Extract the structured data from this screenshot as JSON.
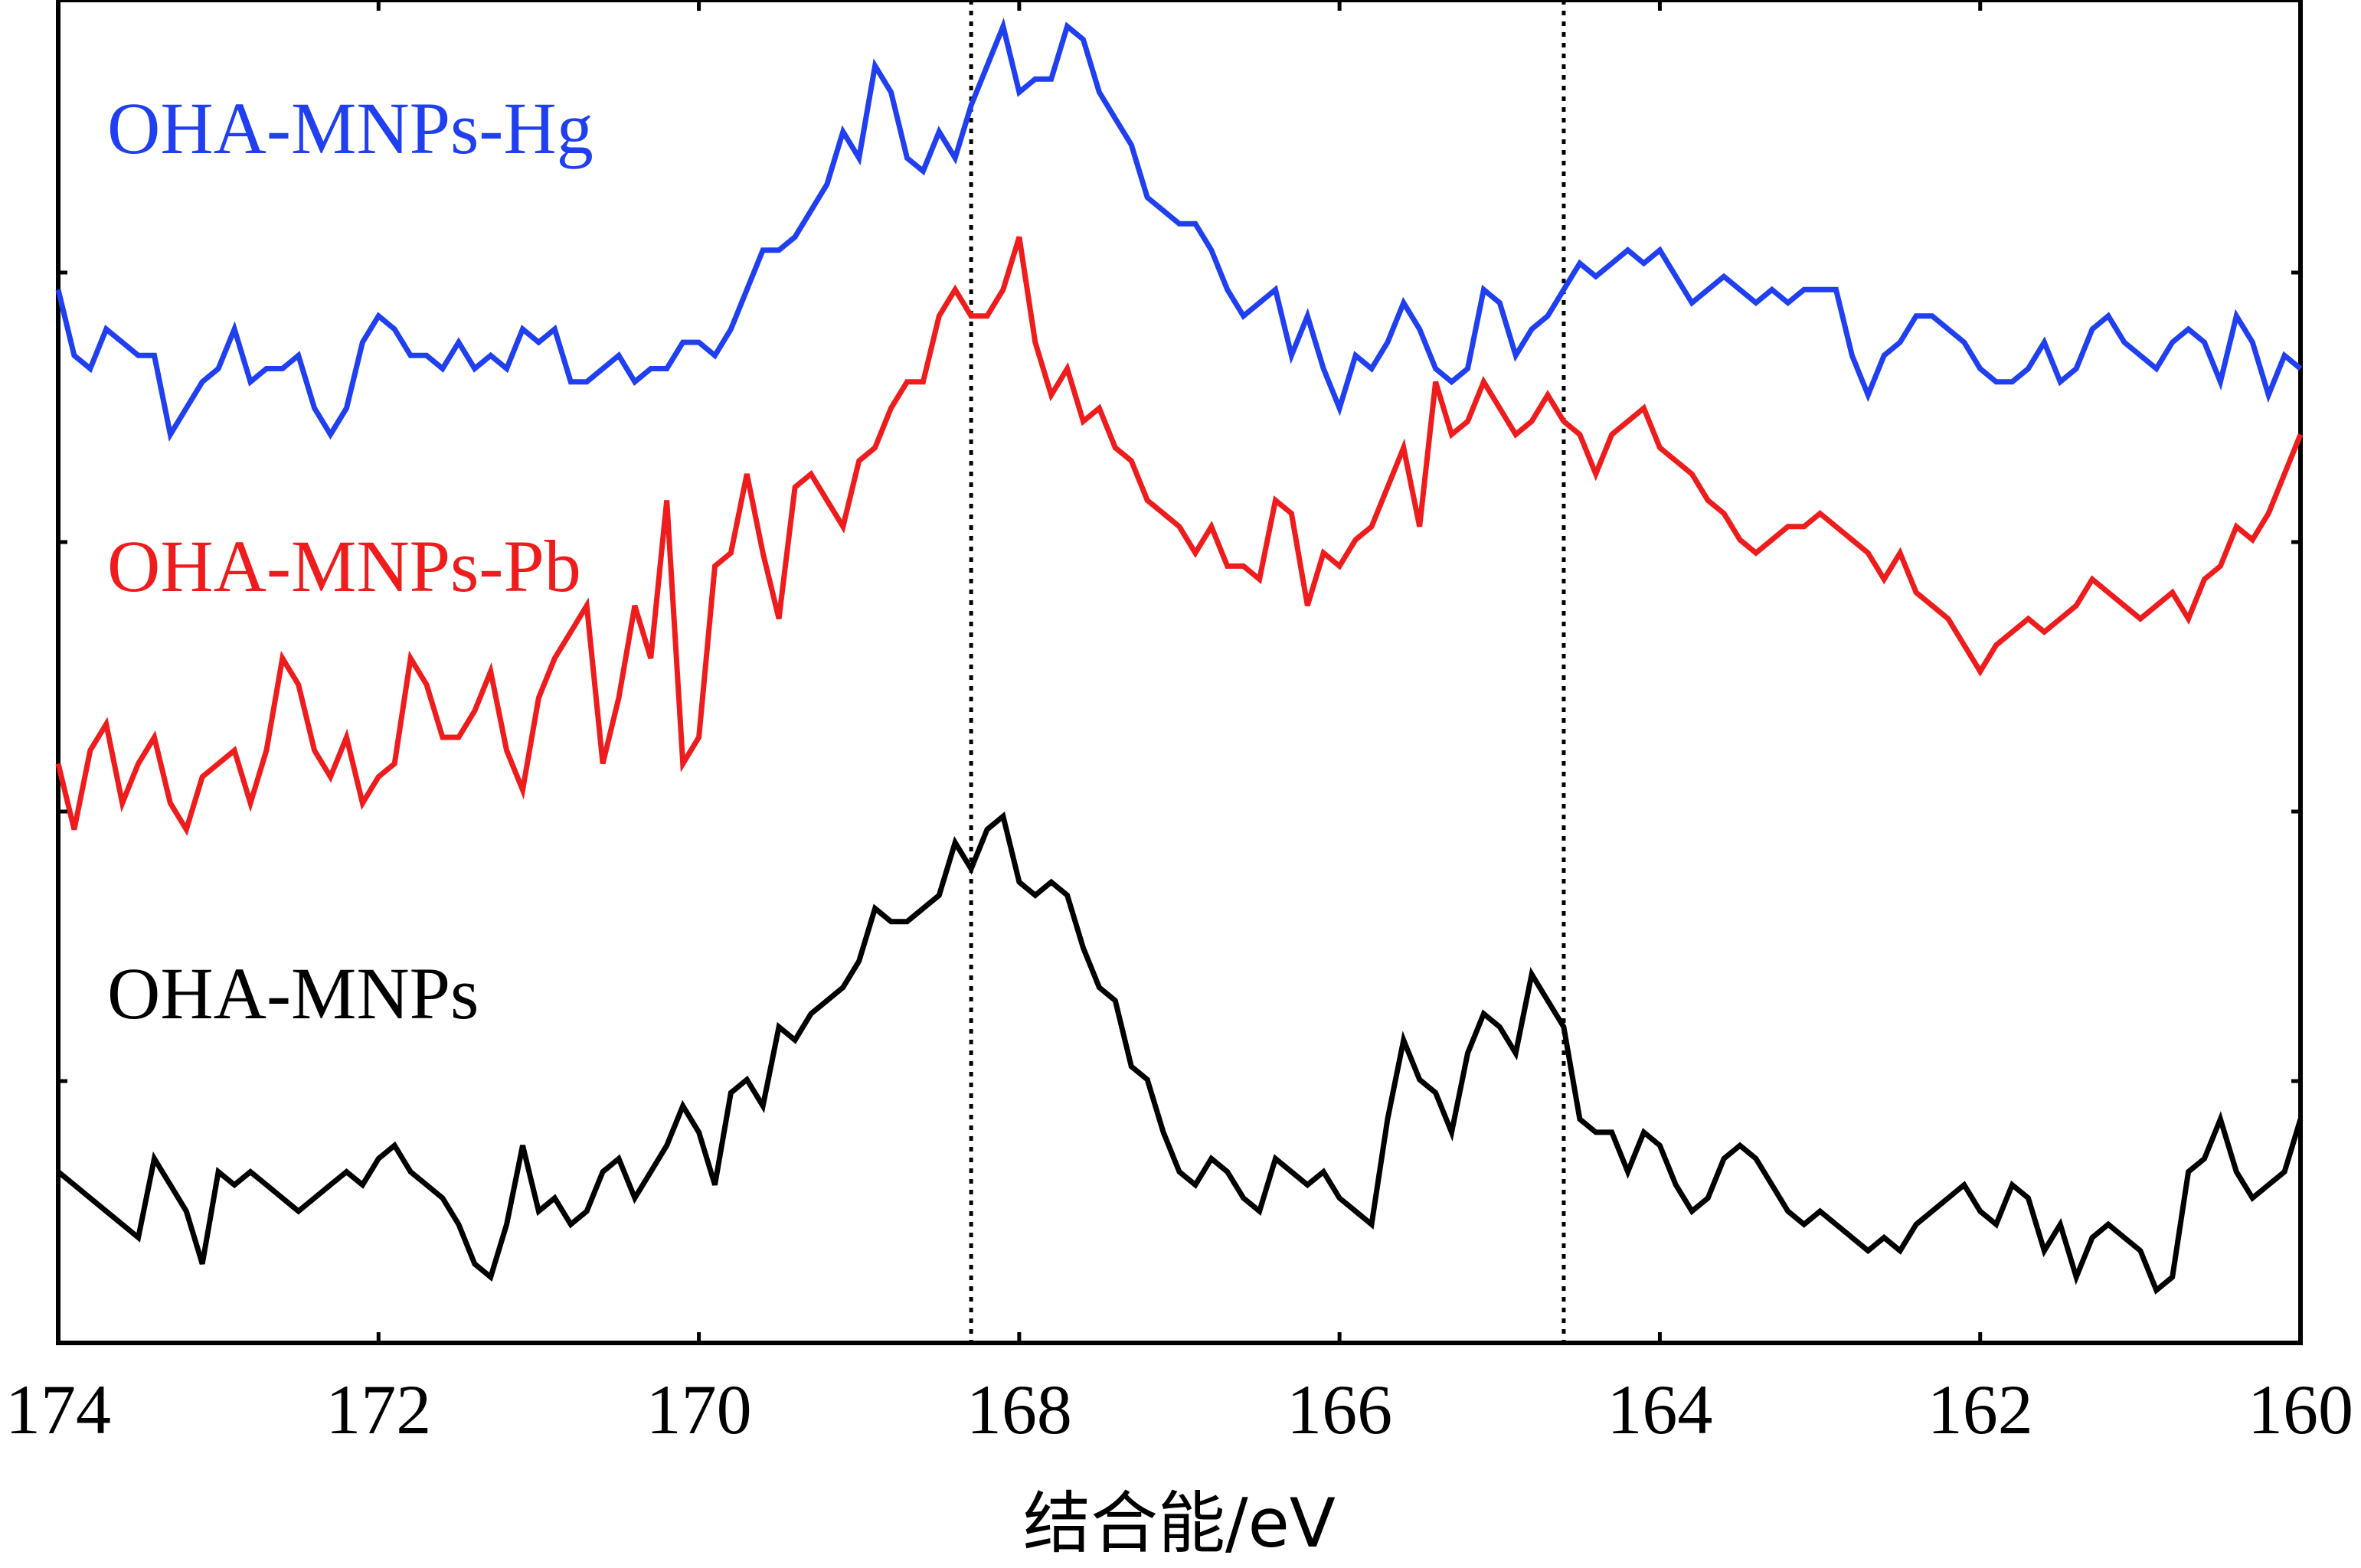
{
  "chart_data": {
    "type": "line",
    "title": "",
    "xlabel": "结合能/eV",
    "ylabel": "",
    "xlim": [
      174,
      160
    ],
    "x_reversed": true,
    "xticks": [
      174,
      172,
      170,
      168,
      166,
      164,
      162,
      160
    ],
    "yticks_labeled": false,
    "grid": false,
    "legend": "inline-labels-left",
    "reference_lines": [
      {
        "x": 168.3,
        "style": "dotted"
      },
      {
        "x": 164.6,
        "style": "dotted"
      }
    ],
    "series": [
      {
        "name": "OHA-MNPs-Hg",
        "color": "#1f3ff0",
        "x": [
          174.0,
          173.9,
          173.8,
          173.7,
          173.6,
          173.5,
          173.4,
          173.3,
          173.2,
          173.1,
          173.0,
          172.9,
          172.8,
          172.7,
          172.6,
          172.5,
          172.4,
          172.3,
          172.2,
          172.1,
          172.0,
          171.9,
          171.8,
          171.7,
          171.6,
          171.5,
          171.4,
          171.3,
          171.2,
          171.1,
          171.0,
          170.9,
          170.8,
          170.7,
          170.6,
          170.5,
          170.4,
          170.3,
          170.2,
          170.1,
          170.0,
          169.9,
          169.8,
          169.7,
          169.6,
          169.5,
          169.4,
          169.3,
          169.2,
          169.1,
          169.0,
          168.9,
          168.8,
          168.7,
          168.6,
          168.5,
          168.4,
          168.3,
          168.2,
          168.1,
          168.0,
          167.9,
          167.8,
          167.7,
          167.6,
          167.5,
          167.4,
          167.3,
          167.2,
          167.1,
          167.0,
          166.9,
          166.8,
          166.7,
          166.6,
          166.5,
          166.4,
          166.3,
          166.2,
          166.1,
          166.0,
          165.9,
          165.8,
          165.7,
          165.6,
          165.5,
          165.4,
          165.3,
          165.2,
          165.1,
          165.0,
          164.9,
          164.8,
          164.7,
          164.6,
          164.5,
          164.4,
          164.3,
          164.2,
          164.1,
          164.0,
          163.9,
          163.8,
          163.7,
          163.6,
          163.5,
          163.4,
          163.3,
          163.2,
          163.1,
          163.0,
          162.9,
          162.8,
          162.7,
          162.6,
          162.5,
          162.4,
          162.3,
          162.2,
          162.1,
          162.0,
          161.9,
          161.8,
          161.7,
          161.6,
          161.5,
          161.4,
          161.3,
          161.2,
          161.1,
          161.0,
          160.9,
          160.8,
          160.7,
          160.6,
          160.5,
          160.4,
          160.3,
          160.2,
          160.1,
          160.0
        ],
        "y": [
          0.3,
          0.25,
          0.24,
          0.27,
          0.26,
          0.25,
          0.25,
          0.19,
          0.21,
          0.23,
          0.24,
          0.27,
          0.23,
          0.24,
          0.24,
          0.25,
          0.21,
          0.19,
          0.21,
          0.26,
          0.28,
          0.27,
          0.25,
          0.25,
          0.24,
          0.26,
          0.24,
          0.25,
          0.24,
          0.27,
          0.26,
          0.27,
          0.23,
          0.23,
          0.24,
          0.25,
          0.23,
          0.24,
          0.24,
          0.26,
          0.26,
          0.25,
          0.27,
          0.3,
          0.33,
          0.33,
          0.34,
          0.36,
          0.38,
          0.42,
          0.4,
          0.47,
          0.45,
          0.4,
          0.39,
          0.42,
          0.4,
          0.44,
          0.47,
          0.5,
          0.45,
          0.46,
          0.46,
          0.5,
          0.49,
          0.45,
          0.43,
          0.41,
          0.37,
          0.36,
          0.35,
          0.35,
          0.33,
          0.3,
          0.28,
          0.29,
          0.3,
          0.25,
          0.28,
          0.24,
          0.21,
          0.25,
          0.24,
          0.26,
          0.29,
          0.27,
          0.24,
          0.23,
          0.24,
          0.3,
          0.29,
          0.25,
          0.27,
          0.28,
          0.3,
          0.32,
          0.31,
          0.32,
          0.33,
          0.32,
          0.33,
          0.31,
          0.29,
          0.3,
          0.31,
          0.3,
          0.29,
          0.3,
          0.29,
          0.3,
          0.3,
          0.3,
          0.25,
          0.22,
          0.25,
          0.26,
          0.28,
          0.28,
          0.27,
          0.26,
          0.24,
          0.23,
          0.23,
          0.24,
          0.26,
          0.23,
          0.24,
          0.27,
          0.28,
          0.26,
          0.25,
          0.24,
          0.26,
          0.27,
          0.26,
          0.23,
          0.28,
          0.26,
          0.22,
          0.25,
          0.24
        ]
      },
      {
        "name": "OHA-MNPs-Pb",
        "color": "#ee1c1c",
        "x": [
          174.0,
          173.9,
          173.8,
          173.7,
          173.6,
          173.5,
          173.4,
          173.3,
          173.2,
          173.1,
          173.0,
          172.9,
          172.8,
          172.7,
          172.6,
          172.5,
          172.4,
          172.3,
          172.2,
          172.1,
          172.0,
          171.9,
          171.8,
          171.7,
          171.6,
          171.5,
          171.4,
          171.3,
          171.2,
          171.1,
          171.0,
          170.9,
          170.8,
          170.7,
          170.6,
          170.5,
          170.4,
          170.3,
          170.2,
          170.1,
          170.0,
          169.9,
          169.8,
          169.7,
          169.6,
          169.5,
          169.4,
          169.3,
          169.2,
          169.1,
          169.0,
          168.9,
          168.8,
          168.7,
          168.6,
          168.5,
          168.4,
          168.3,
          168.2,
          168.1,
          168.0,
          167.9,
          167.8,
          167.7,
          167.6,
          167.5,
          167.4,
          167.3,
          167.2,
          167.1,
          167.0,
          166.9,
          166.8,
          166.7,
          166.6,
          166.5,
          166.4,
          166.3,
          166.2,
          166.1,
          166.0,
          165.9,
          165.8,
          165.7,
          165.6,
          165.5,
          165.4,
          165.3,
          165.2,
          165.1,
          165.0,
          164.9,
          164.8,
          164.7,
          164.6,
          164.5,
          164.4,
          164.3,
          164.2,
          164.1,
          164.0,
          163.9,
          163.8,
          163.7,
          163.6,
          163.5,
          163.4,
          163.3,
          163.2,
          163.1,
          163.0,
          162.9,
          162.8,
          162.7,
          162.6,
          162.5,
          162.4,
          162.3,
          162.2,
          162.1,
          162.0,
          161.9,
          161.8,
          161.7,
          161.6,
          161.5,
          161.4,
          161.3,
          161.2,
          161.1,
          161.0,
          160.9,
          160.8,
          160.7,
          160.6,
          160.5,
          160.4,
          160.3,
          160.2,
          160.1,
          160.0
        ],
        "y": [
          -0.06,
          -0.11,
          -0.05,
          -0.03,
          -0.09,
          -0.06,
          -0.04,
          -0.09,
          -0.11,
          -0.07,
          -0.06,
          -0.05,
          -0.09,
          -0.05,
          0.02,
          0.0,
          -0.05,
          -0.07,
          -0.04,
          -0.09,
          -0.07,
          -0.06,
          0.02,
          0.0,
          -0.04,
          -0.04,
          -0.02,
          0.01,
          -0.05,
          -0.08,
          -0.01,
          0.02,
          0.04,
          0.06,
          -0.06,
          -0.01,
          0.06,
          0.02,
          0.14,
          -0.06,
          -0.04,
          0.09,
          0.1,
          0.16,
          0.1,
          0.05,
          0.15,
          0.16,
          0.14,
          0.12,
          0.17,
          0.18,
          0.21,
          0.23,
          0.23,
          0.28,
          0.3,
          0.28,
          0.28,
          0.3,
          0.34,
          0.26,
          0.22,
          0.24,
          0.2,
          0.21,
          0.18,
          0.17,
          0.14,
          0.13,
          0.12,
          0.1,
          0.12,
          0.09,
          0.09,
          0.08,
          0.14,
          0.13,
          0.06,
          0.1,
          0.09,
          0.11,
          0.12,
          0.15,
          0.18,
          0.12,
          0.23,
          0.19,
          0.2,
          0.23,
          0.21,
          0.19,
          0.2,
          0.22,
          0.2,
          0.19,
          0.16,
          0.19,
          0.2,
          0.21,
          0.18,
          0.17,
          0.16,
          0.14,
          0.13,
          0.11,
          0.1,
          0.11,
          0.12,
          0.12,
          0.13,
          0.12,
          0.11,
          0.1,
          0.08,
          0.1,
          0.07,
          0.06,
          0.05,
          0.03,
          0.01,
          0.03,
          0.04,
          0.05,
          0.04,
          0.05,
          0.06,
          0.08,
          0.07,
          0.06,
          0.05,
          0.06,
          0.07,
          0.05,
          0.08,
          0.09,
          0.12,
          0.11,
          0.13,
          0.16,
          0.19
        ]
      },
      {
        "name": "OHA-MNPs",
        "color": "#000000",
        "x": [
          174.0,
          173.9,
          173.8,
          173.7,
          173.6,
          173.5,
          173.4,
          173.3,
          173.2,
          173.1,
          173.0,
          172.9,
          172.8,
          172.7,
          172.6,
          172.5,
          172.4,
          172.3,
          172.2,
          172.1,
          172.0,
          171.9,
          171.8,
          171.7,
          171.6,
          171.5,
          171.4,
          171.3,
          171.2,
          171.1,
          171.0,
          170.9,
          170.8,
          170.7,
          170.6,
          170.5,
          170.4,
          170.3,
          170.2,
          170.1,
          170.0,
          169.9,
          169.8,
          169.7,
          169.6,
          169.5,
          169.4,
          169.3,
          169.2,
          169.1,
          169.0,
          168.9,
          168.8,
          168.7,
          168.6,
          168.5,
          168.4,
          168.3,
          168.2,
          168.1,
          168.0,
          167.9,
          167.8,
          167.7,
          167.6,
          167.5,
          167.4,
          167.3,
          167.2,
          167.1,
          167.0,
          166.9,
          166.8,
          166.7,
          166.6,
          166.5,
          166.4,
          166.3,
          166.2,
          166.1,
          166.0,
          165.9,
          165.8,
          165.7,
          165.6,
          165.5,
          165.4,
          165.3,
          165.2,
          165.1,
          165.0,
          164.9,
          164.8,
          164.7,
          164.6,
          164.5,
          164.4,
          164.3,
          164.2,
          164.1,
          164.0,
          163.9,
          163.8,
          163.7,
          163.6,
          163.5,
          163.4,
          163.3,
          163.2,
          163.1,
          163.0,
          162.9,
          162.8,
          162.7,
          162.6,
          162.5,
          162.4,
          162.3,
          162.2,
          162.1,
          162.0,
          161.9,
          161.8,
          161.7,
          161.6,
          161.5,
          161.4,
          161.3,
          161.2,
          161.1,
          161.0,
          160.9,
          160.8,
          160.7,
          160.6,
          160.5,
          160.4,
          160.3,
          160.2,
          160.1,
          160.0
        ],
        "y": [
          -0.37,
          -0.38,
          -0.39,
          -0.4,
          -0.41,
          -0.42,
          -0.36,
          -0.38,
          -0.4,
          -0.44,
          -0.37,
          -0.38,
          -0.37,
          -0.38,
          -0.39,
          -0.4,
          -0.39,
          -0.38,
          -0.37,
          -0.38,
          -0.36,
          -0.35,
          -0.37,
          -0.38,
          -0.39,
          -0.41,
          -0.44,
          -0.45,
          -0.41,
          -0.35,
          -0.4,
          -0.39,
          -0.41,
          -0.4,
          -0.37,
          -0.36,
          -0.39,
          -0.37,
          -0.35,
          -0.32,
          -0.34,
          -0.38,
          -0.31,
          -0.3,
          -0.32,
          -0.26,
          -0.27,
          -0.25,
          -0.24,
          -0.23,
          -0.21,
          -0.17,
          -0.18,
          -0.18,
          -0.17,
          -0.16,
          -0.12,
          -0.14,
          -0.11,
          -0.1,
          -0.15,
          -0.16,
          -0.15,
          -0.16,
          -0.2,
          -0.23,
          -0.24,
          -0.29,
          -0.3,
          -0.34,
          -0.37,
          -0.38,
          -0.36,
          -0.37,
          -0.39,
          -0.4,
          -0.36,
          -0.37,
          -0.38,
          -0.37,
          -0.39,
          -0.4,
          -0.41,
          -0.33,
          -0.27,
          -0.3,
          -0.31,
          -0.34,
          -0.28,
          -0.25,
          -0.26,
          -0.28,
          -0.22,
          -0.24,
          -0.26,
          -0.33,
          -0.34,
          -0.34,
          -0.37,
          -0.34,
          -0.35,
          -0.38,
          -0.4,
          -0.39,
          -0.36,
          -0.35,
          -0.36,
          -0.38,
          -0.4,
          -0.41,
          -0.4,
          -0.41,
          -0.42,
          -0.43,
          -0.42,
          -0.43,
          -0.41,
          -0.4,
          -0.39,
          -0.38,
          -0.4,
          -0.41,
          -0.38,
          -0.39,
          -0.43,
          -0.41,
          -0.45,
          -0.42,
          -0.41,
          -0.42,
          -0.43,
          -0.46,
          -0.45,
          -0.37,
          -0.36,
          -0.33,
          -0.37,
          -0.39,
          -0.38,
          -0.37,
          -0.33
        ]
      }
    ]
  }
}
